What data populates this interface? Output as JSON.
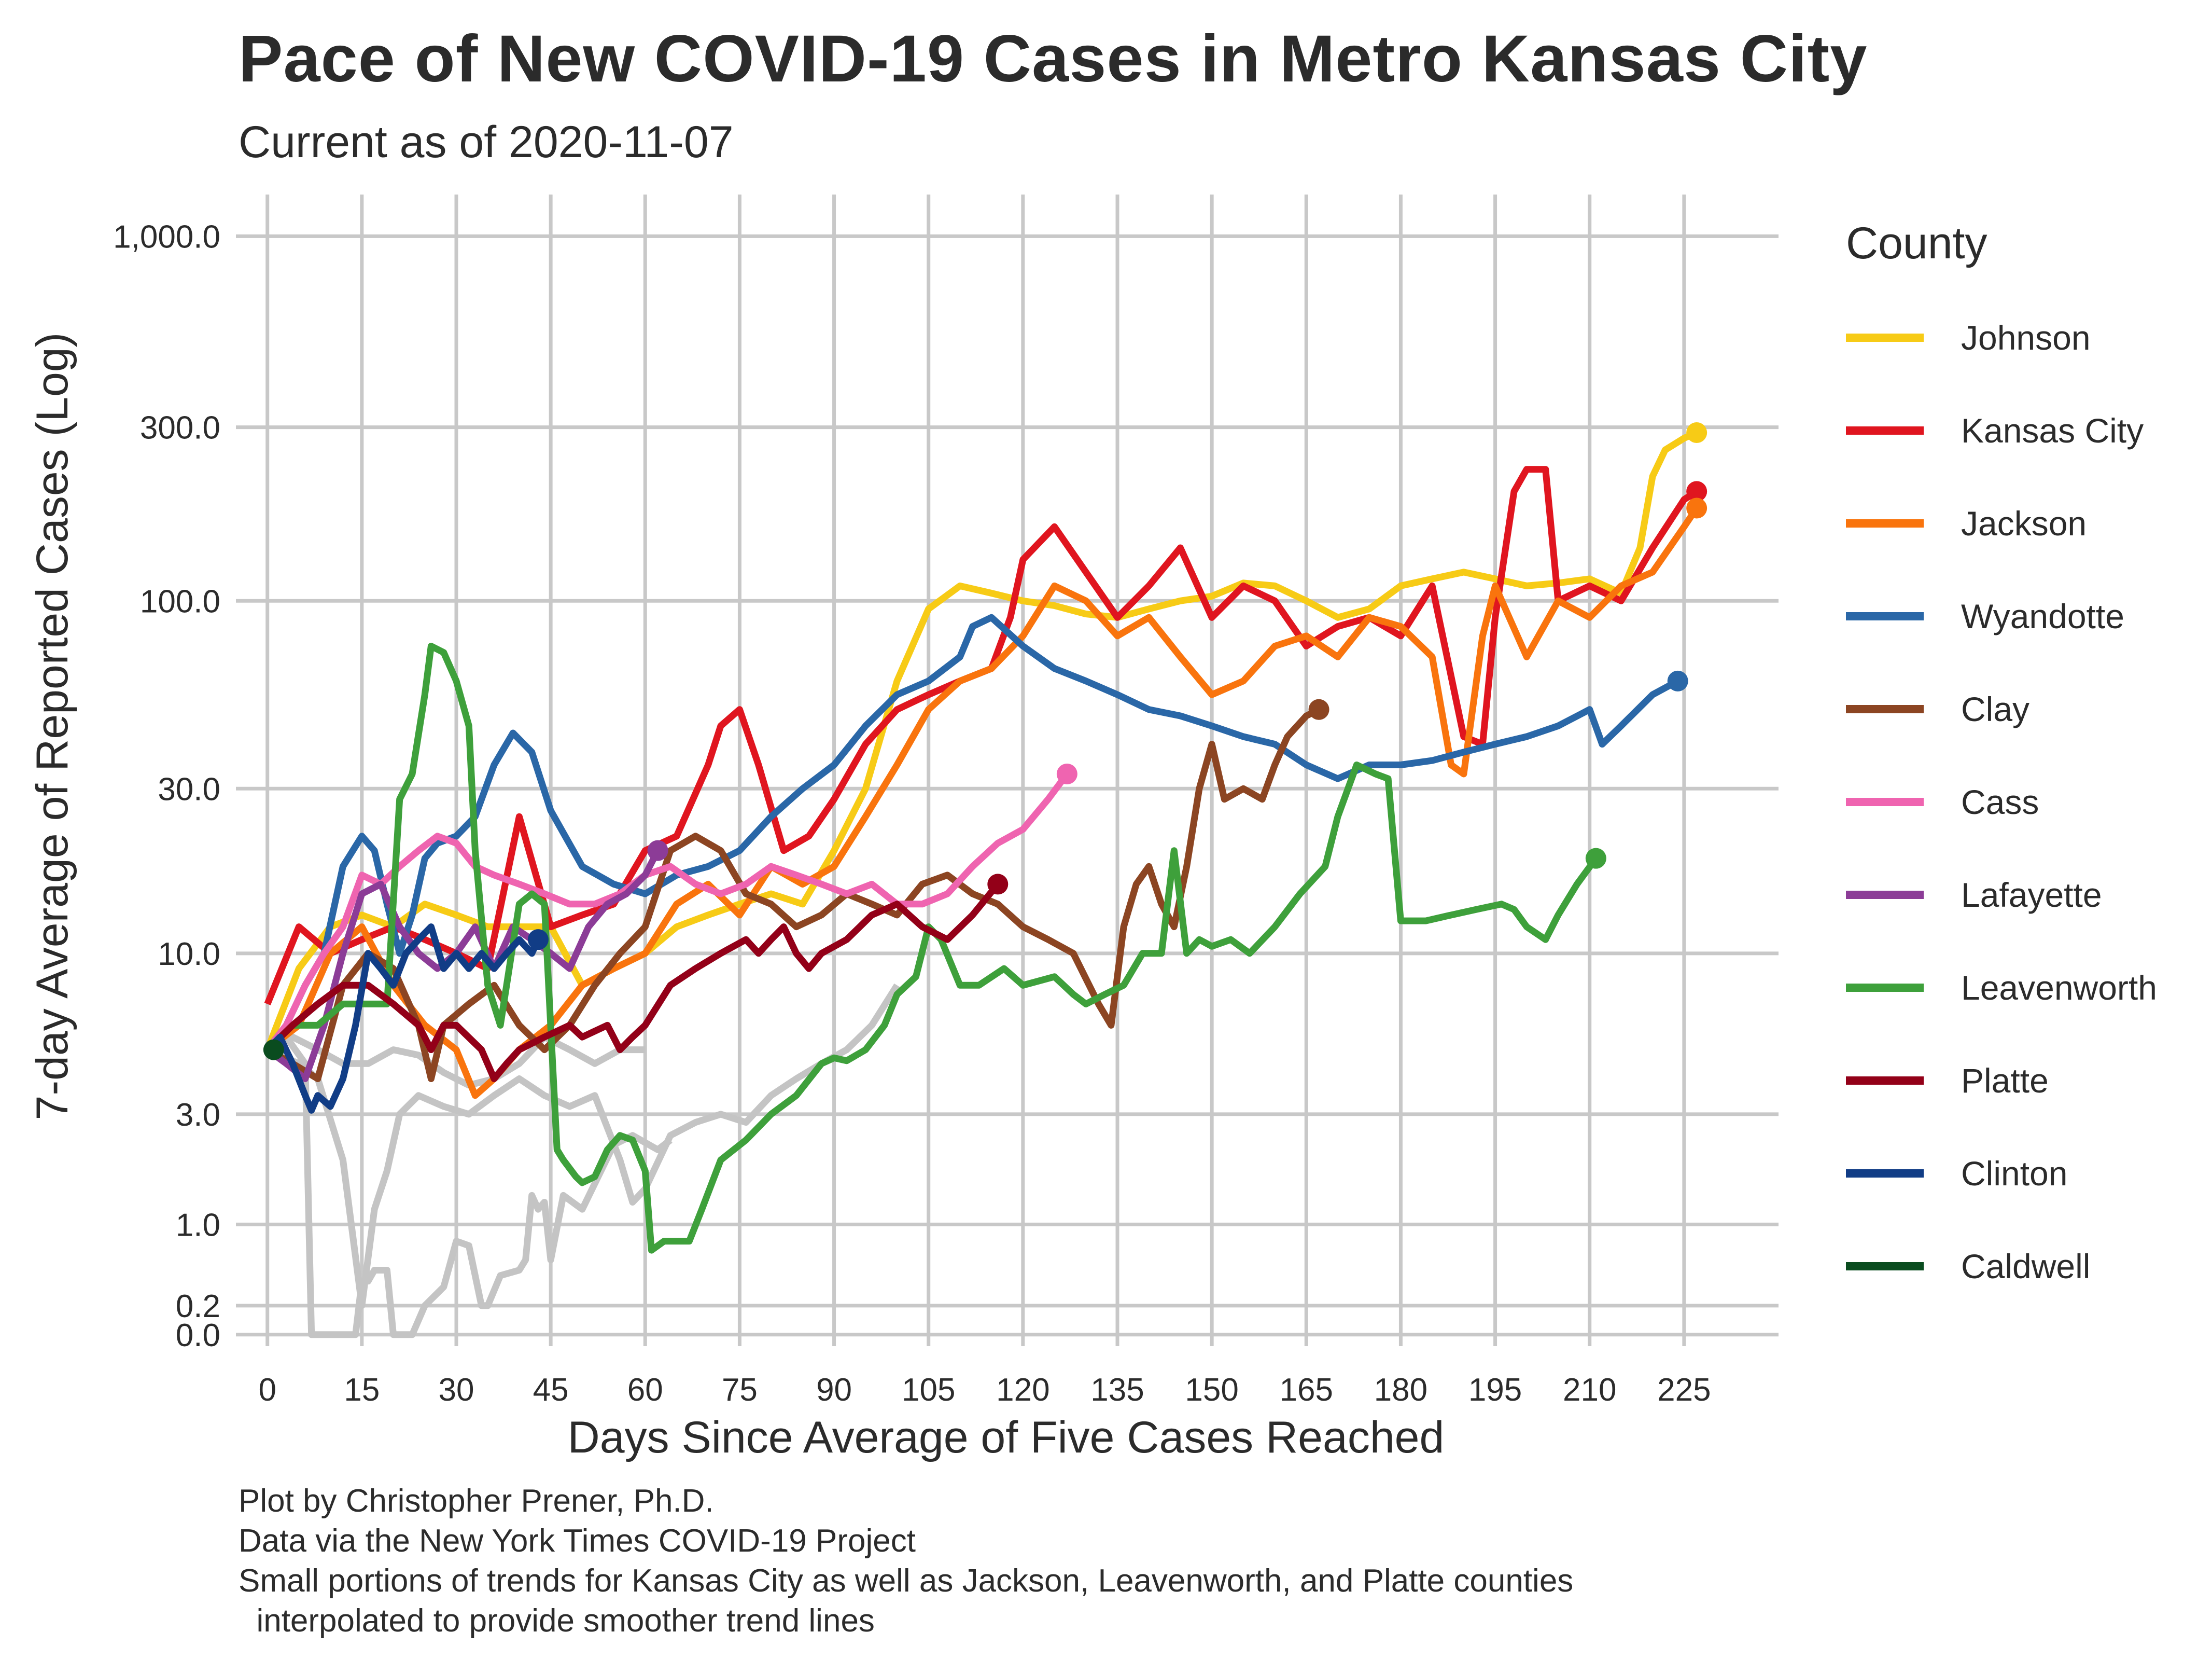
{
  "title": "Pace of New COVID-19 Cases in Metro Kansas City",
  "subtitle": "Current as of 2020-11-07",
  "legend": {
    "title": "County"
  },
  "caption": {
    "line1": "Plot by Christopher Prener, Ph.D.",
    "line2": "Data via the New York Times COVID-19 Project",
    "line3": "Small portions of trends for Kansas City as well as Jackson, Leavenworth, and Platte counties",
    "line4": "  interpolated to provide smoother trend lines"
  },
  "chart_data": {
    "type": "line",
    "title": "Pace of New COVID-19 Cases in Metro Kansas City",
    "subtitle": "Current as of 2020-11-07",
    "xlabel": "Days Since Average of Five Cases Reached",
    "ylabel": "7-day Average of Reported Cases (Log)",
    "xlim": [
      -5,
      240
    ],
    "x_ticks": [
      0,
      15,
      30,
      45,
      60,
      75,
      90,
      105,
      120,
      135,
      150,
      165,
      180,
      195,
      210,
      225
    ],
    "y_scale": "log1p",
    "y_ticks": [
      0,
      0.2,
      1,
      3,
      10,
      30,
      100,
      300,
      1000
    ],
    "y_tick_labels": [
      "0.0",
      "0.2",
      "1.0",
      "3.0",
      "10.0",
      "30.0",
      "100.0",
      "300.0",
      "1,000.0"
    ],
    "ylim": [
      -0.07,
      1300
    ],
    "grid": true,
    "legend_position": "right",
    "background_series": {
      "color": "#c4c4c4",
      "lines": [
        {
          "x": [
            0,
            3,
            6,
            7,
            10,
            14,
            15,
            16,
            17,
            19,
            20,
            23,
            25,
            28,
            30,
            32,
            34,
            35,
            37,
            40,
            41,
            42,
            43,
            44,
            45,
            47,
            50,
            55,
            58,
            62,
            64
          ],
          "y": [
            5,
            5.5,
            4.5,
            0,
            0,
            0,
            0.4,
            0.4,
            0.5,
            0.5,
            0,
            0,
            0.2,
            0.35,
            0.8,
            0.75,
            0.2,
            0.2,
            0.45,
            0.5,
            0.6,
            1.4,
            1.2,
            1.3,
            0.6,
            1.4,
            1.2,
            2.3,
            2.5,
            2.2,
            2.4
          ]
        },
        {
          "x": [
            0,
            5,
            8,
            12,
            15,
            17,
            19,
            21,
            24,
            28,
            32,
            36,
            40,
            44,
            48,
            52,
            56,
            58,
            60,
            64,
            68,
            72,
            76,
            80,
            84,
            88,
            92,
            96,
            100
          ],
          "y": [
            5,
            4.5,
            4,
            2,
            0.2,
            1.2,
            1.8,
            3,
            3.5,
            3.2,
            3,
            3.5,
            4,
            3.5,
            3.2,
            3.5,
            2,
            1.3,
            1.5,
            2.5,
            2.8,
            3,
            2.8,
            3.5,
            4,
            4.5,
            5,
            6,
            8
          ]
        },
        {
          "x": [
            0,
            4,
            8,
            12,
            16,
            20,
            24,
            28,
            32,
            36,
            40,
            44,
            48,
            52,
            56,
            60
          ],
          "y": [
            5,
            5.5,
            5,
            4.5,
            4.5,
            5,
            4.8,
            4.2,
            3.8,
            4,
            4.5,
            5.5,
            5,
            4.5,
            5,
            5
          ]
        }
      ]
    },
    "series": [
      {
        "name": "Johnson",
        "color": "#f7cb16",
        "x": [
          0,
          5,
          10,
          15,
          20,
          25,
          30,
          35,
          40,
          45,
          50,
          55,
          60,
          65,
          70,
          75,
          80,
          85,
          90,
          95,
          100,
          105,
          110,
          115,
          120,
          125,
          130,
          135,
          140,
          145,
          150,
          155,
          160,
          165,
          170,
          175,
          180,
          185,
          190,
          195,
          200,
          205,
          210,
          215,
          218,
          220,
          222,
          225,
          227
        ],
        "y": [
          5,
          9,
          12,
          13,
          12,
          14,
          13,
          12,
          12,
          12,
          8,
          9,
          10,
          12,
          13,
          14,
          15,
          14,
          20,
          30,
          60,
          95,
          110,
          105,
          100,
          97,
          92,
          90,
          95,
          100,
          103,
          112,
          110,
          100,
          90,
          95,
          110,
          115,
          120,
          115,
          110,
          112,
          115,
          105,
          140,
          220,
          260,
          280,
          290
        ]
      },
      {
        "name": "Kansas City",
        "color": "#e0151f",
        "x": [
          0,
          5,
          10,
          15,
          20,
          25,
          30,
          35,
          40,
          45,
          50,
          55,
          60,
          65,
          70,
          72,
          75,
          78,
          82,
          86,
          90,
          95,
          100,
          105,
          110,
          115,
          118,
          120,
          125,
          130,
          135,
          140,
          145,
          150,
          155,
          160,
          165,
          170,
          175,
          180,
          185,
          190,
          193,
          195,
          198,
          200,
          203,
          205,
          210,
          215,
          220,
          225,
          227
        ],
        "y": [
          7,
          12,
          10,
          11,
          12,
          11,
          10,
          9,
          25,
          12,
          13,
          14,
          20,
          22,
          35,
          45,
          50,
          35,
          20,
          22,
          28,
          40,
          50,
          55,
          60,
          65,
          90,
          130,
          160,
          120,
          90,
          110,
          140,
          90,
          110,
          100,
          75,
          85,
          90,
          80,
          110,
          42,
          40,
          90,
          200,
          230,
          230,
          100,
          110,
          100,
          140,
          190,
          200
        ]
      },
      {
        "name": "Jackson",
        "color": "#f9740d",
        "x": [
          0,
          5,
          10,
          15,
          20,
          25,
          30,
          33,
          36,
          40,
          45,
          50,
          55,
          60,
          65,
          70,
          75,
          80,
          85,
          90,
          95,
          100,
          105,
          110,
          115,
          120,
          125,
          130,
          135,
          140,
          145,
          150,
          155,
          160,
          165,
          170,
          175,
          180,
          185,
          188,
          190,
          193,
          195,
          200,
          205,
          210,
          215,
          220,
          225,
          227
        ],
        "y": [
          5,
          6,
          10,
          12,
          8,
          6,
          5,
          3.5,
          4,
          5,
          6,
          8,
          9,
          10,
          14,
          16,
          13,
          18,
          16,
          18,
          25,
          35,
          50,
          60,
          65,
          80,
          110,
          100,
          80,
          90,
          70,
          55,
          60,
          75,
          80,
          70,
          90,
          85,
          70,
          35,
          33,
          80,
          110,
          70,
          100,
          90,
          110,
          120,
          160,
          180
        ]
      },
      {
        "name": "Wyandotte",
        "color": "#2a67a7",
        "x": [
          0,
          3,
          6,
          9,
          12,
          15,
          17,
          19,
          21,
          23,
          25,
          27,
          30,
          33,
          36,
          39,
          42,
          45,
          50,
          55,
          60,
          65,
          70,
          75,
          80,
          85,
          90,
          95,
          100,
          105,
          110,
          112,
          115,
          120,
          125,
          130,
          135,
          140,
          145,
          150,
          155,
          160,
          165,
          170,
          175,
          180,
          185,
          190,
          195,
          200,
          205,
          210,
          212,
          215,
          220,
          224
        ],
        "y": [
          5,
          6,
          8,
          10,
          18,
          22,
          20,
          14,
          10,
          13,
          19,
          21,
          22,
          25,
          35,
          43,
          38,
          26,
          18,
          16,
          15,
          17,
          18,
          20,
          25,
          30,
          35,
          45,
          55,
          60,
          70,
          85,
          90,
          75,
          65,
          60,
          55,
          50,
          48,
          45,
          42,
          40,
          35,
          32,
          35,
          35,
          36,
          38,
          40,
          42,
          45,
          50,
          40,
          45,
          55,
          60
        ]
      },
      {
        "name": "Clay",
        "color": "#8c4522",
        "x": [
          0,
          4,
          8,
          12,
          16,
          20,
          24,
          26,
          28,
          32,
          36,
          40,
          44,
          48,
          52,
          56,
          60,
          64,
          68,
          72,
          76,
          80,
          84,
          88,
          92,
          96,
          100,
          104,
          108,
          112,
          116,
          120,
          124,
          128,
          132,
          134,
          136,
          138,
          140,
          142,
          144,
          146,
          148,
          150,
          152,
          155,
          158,
          160,
          162,
          165,
          167
        ],
        "y": [
          5,
          4.5,
          4,
          8,
          10,
          9,
          6,
          4,
          6,
          7,
          8,
          6,
          5,
          6,
          8,
          10,
          12,
          20,
          22,
          20,
          15,
          14,
          12,
          13,
          15,
          14,
          13,
          16,
          17,
          15,
          14,
          12,
          11,
          10,
          7,
          6,
          12,
          16,
          18,
          14,
          12,
          18,
          30,
          40,
          28,
          30,
          28,
          35,
          42,
          48,
          50
        ]
      },
      {
        "name": "Cass",
        "color": "#ef64b0",
        "x": [
          0,
          3,
          6,
          9,
          12,
          15,
          18,
          21,
          24,
          27,
          30,
          33,
          36,
          40,
          44,
          48,
          52,
          56,
          60,
          64,
          68,
          72,
          76,
          80,
          84,
          88,
          92,
          96,
          100,
          104,
          108,
          112,
          116,
          120,
          124,
          127
        ],
        "y": [
          5,
          6,
          8,
          10,
          12,
          17,
          16,
          18,
          20,
          22,
          21,
          18,
          17,
          16,
          15,
          14,
          14,
          15,
          17,
          18,
          16,
          15,
          16,
          18,
          17,
          16,
          15,
          16,
          14,
          14,
          15,
          18,
          21,
          23,
          28,
          33
        ]
      },
      {
        "name": "Lafayette",
        "color": "#8c3c97",
        "x": [
          0,
          3,
          6,
          9,
          12,
          15,
          18,
          21,
          24,
          27,
          30,
          33,
          36,
          39,
          42,
          45,
          48,
          51,
          54,
          57,
          60,
          62
        ],
        "y": [
          5,
          4.5,
          4,
          6,
          10,
          15,
          16,
          12,
          10,
          9,
          10,
          12,
          9,
          12,
          11,
          10,
          9,
          12,
          14,
          15,
          17,
          20
        ]
      },
      {
        "name": "Leavenworth",
        "color": "#3ea03b",
        "x": [
          0,
          4,
          8,
          12,
          16,
          19,
          21,
          23,
          25,
          26,
          28,
          30,
          32,
          33,
          35,
          37,
          40,
          42,
          44,
          46,
          47,
          49,
          50,
          52,
          54,
          56,
          58,
          60,
          61,
          63,
          65,
          67,
          69,
          72,
          76,
          80,
          84,
          88,
          90,
          92,
          95,
          98,
          100,
          103,
          105,
          107,
          110,
          113,
          117,
          120,
          125,
          128,
          130,
          133,
          136,
          139,
          142,
          144,
          146,
          148,
          150,
          153,
          156,
          160,
          164,
          168,
          170,
          173,
          176,
          178,
          180,
          184,
          188,
          192,
          196,
          198,
          200,
          203,
          205,
          208,
          211
        ],
        "y": [
          5,
          6,
          6,
          7,
          7,
          7,
          28,
          33,
          55,
          75,
          72,
          60,
          45,
          20,
          8,
          6,
          14,
          15,
          14,
          2.2,
          2.0,
          1.7,
          1.6,
          1.7,
          2.2,
          2.5,
          2.4,
          1.8,
          0.7,
          0.8,
          0.8,
          0.8,
          1.2,
          2.0,
          2.4,
          3,
          3.5,
          4.5,
          4.7,
          4.6,
          5,
          6,
          7.5,
          8.5,
          12,
          11,
          8,
          8,
          9,
          8,
          8.5,
          7.5,
          7,
          7.5,
          8,
          10,
          10,
          20,
          10,
          11,
          10.5,
          11,
          10,
          12,
          15,
          18,
          25,
          35,
          33,
          32,
          12.5,
          12.5,
          13,
          13.5,
          14,
          13.5,
          12,
          11,
          13,
          16,
          19
        ]
      },
      {
        "name": "Platte",
        "color": "#930018",
        "x": [
          0,
          4,
          8,
          12,
          16,
          20,
          24,
          26,
          28,
          30,
          34,
          36,
          38,
          40,
          44,
          48,
          50,
          54,
          56,
          58,
          60,
          64,
          68,
          72,
          76,
          78,
          80,
          82,
          84,
          86,
          88,
          92,
          96,
          100,
          104,
          108,
          112,
          116
        ],
        "y": [
          5,
          6,
          7,
          8,
          8,
          7,
          6,
          5,
          6,
          6,
          5,
          4,
          4.5,
          5,
          5.5,
          6,
          5.5,
          6,
          5,
          5.5,
          6,
          8,
          9,
          10,
          11,
          10,
          11,
          12,
          10,
          9,
          10,
          11,
          13,
          14,
          12,
          11,
          13,
          16
        ]
      },
      {
        "name": "Clinton",
        "color": "#113d86",
        "x": [
          0,
          2,
          4,
          6,
          7,
          8,
          10,
          12,
          14,
          16,
          18,
          20,
          22,
          24,
          26,
          28,
          30,
          32,
          34,
          36,
          38,
          40,
          42,
          43
        ],
        "y": [
          5,
          5.5,
          4.5,
          3.5,
          3.1,
          3.5,
          3.2,
          4,
          6,
          10,
          9,
          8,
          10,
          11,
          12,
          9,
          10,
          9,
          10,
          9,
          10,
          11,
          10,
          11
        ]
      },
      {
        "name": "Caldwell",
        "color": "#0a4c1f",
        "x": [
          0,
          1
        ],
        "y": [
          5,
          5
        ]
      }
    ],
    "endpoint_markers": true
  }
}
